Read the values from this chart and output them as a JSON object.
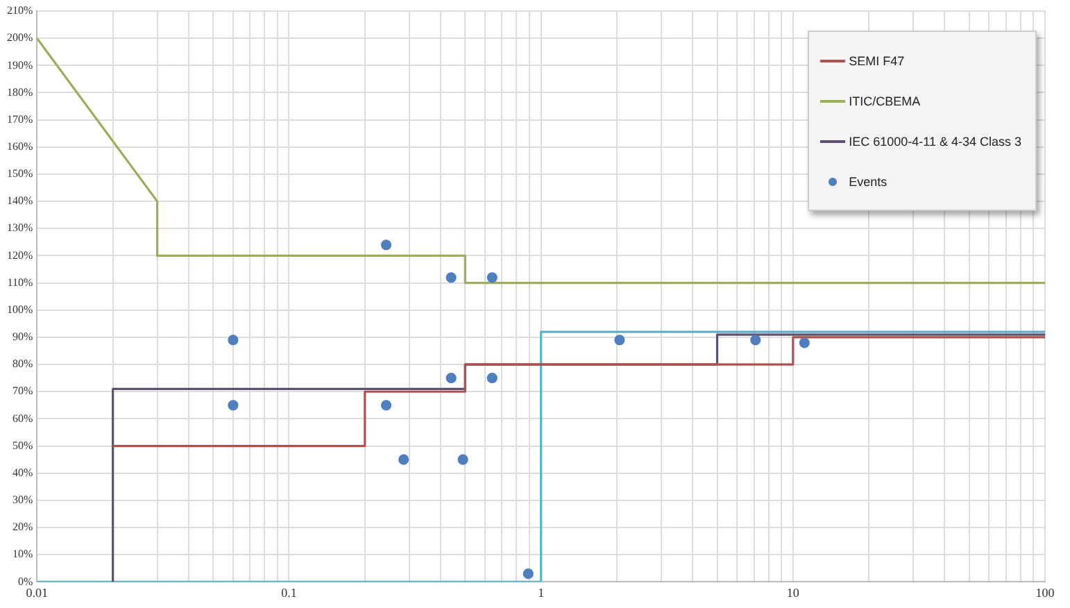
{
  "chart_data": {
    "type": "line",
    "log": "x",
    "grid": true,
    "legend": "top right",
    "marker": "none",
    "line_style": "solid",
    "xlim": [
      0.01,
      100
    ],
    "xticks": [
      0.01,
      {
        "value": 0.02,
        "label": null
      },
      {
        "value": 0.03,
        "label": null
      },
      {
        "value": 0.04,
        "label": null
      },
      {
        "value": 0.05,
        "label": null
      },
      {
        "value": 0.06,
        "label": null
      },
      {
        "value": 0.07,
        "label": null
      },
      {
        "value": 0.08,
        "label": null
      },
      {
        "value": 0.09,
        "label": null
      },
      0.1,
      {
        "value": 0.2,
        "label": null
      },
      {
        "value": 0.3,
        "label": null
      },
      {
        "value": 0.4,
        "label": null
      },
      {
        "value": 0.5,
        "label": null
      },
      {
        "value": 0.6,
        "label": null
      },
      {
        "value": 0.7,
        "label": null
      },
      {
        "value": 0.8,
        "label": null
      },
      {
        "value": 0.9,
        "label": null
      },
      1,
      {
        "value": 2,
        "label": null
      },
      {
        "value": 3,
        "label": null
      },
      {
        "value": 4,
        "label": null
      },
      {
        "value": 5,
        "label": null
      },
      {
        "value": 6,
        "label": null
      },
      {
        "value": 7,
        "label": null
      },
      {
        "value": 8,
        "label": null
      },
      {
        "value": 9,
        "label": null
      },
      10,
      {
        "value": 20,
        "label": null
      },
      {
        "value": 30,
        "label": null
      },
      {
        "value": 40,
        "label": null
      },
      {
        "value": 50,
        "label": null
      },
      {
        "value": 60,
        "label": null
      },
      {
        "value": 70,
        "label": null
      },
      {
        "value": 80,
        "label": null
      },
      {
        "value": 90,
        "label": null
      },
      100
    ],
    "ylim": [
      0,
      210
    ],
    "yticks": [
      {
        "value": 0,
        "label": "0%"
      },
      {
        "value": 10,
        "label": "10%"
      },
      {
        "value": 20,
        "label": "20%"
      },
      {
        "value": 30,
        "label": "30%"
      },
      {
        "value": 40,
        "label": "40%"
      },
      {
        "value": 50,
        "label": "50%"
      },
      {
        "value": 60,
        "label": "60%"
      },
      {
        "value": 70,
        "label": "70%"
      },
      {
        "value": 80,
        "label": "80%"
      },
      {
        "value": 90,
        "label": "90%"
      },
      {
        "value": 100,
        "label": "100%"
      },
      {
        "value": 110,
        "label": "110%"
      },
      {
        "value": 120,
        "label": "120%"
      },
      {
        "value": 130,
        "label": "130%"
      },
      {
        "value": 140,
        "label": "140%"
      },
      {
        "value": 150,
        "label": "150%"
      },
      {
        "value": 160,
        "label": "160%"
      },
      {
        "value": 170,
        "label": "170%"
      },
      {
        "value": 180,
        "label": "180%"
      },
      {
        "value": 190,
        "label": "190%"
      },
      {
        "value": 200,
        "label": "200%"
      },
      {
        "value": 210,
        "label": "210%"
      }
    ],
    "series": [
      {
        "name": "SEMI F47",
        "type": "line",
        "color": "#b0504e",
        "x": [
          0.02,
          0.2,
          0.2,
          0.5,
          0.5,
          10,
          10,
          100
        ],
        "values": [
          50,
          50,
          70,
          70,
          80,
          80,
          90,
          90
        ]
      },
      {
        "name": "ITIC/CBEMA",
        "type": "line",
        "color": "#9bae5a",
        "x": [
          0.01,
          0.03,
          0.03,
          0.5,
          0.5,
          100
        ],
        "values": [
          200,
          140,
          120,
          120,
          110,
          110
        ]
      },
      {
        "name": "IEC 61000-4-11 & 4-34 Class 3",
        "type": "line",
        "color": "#5e5070",
        "x": [
          0.02,
          0.02,
          0.5,
          0.5,
          5,
          5,
          100
        ],
        "values": [
          0,
          71,
          71,
          80,
          80,
          91,
          91
        ]
      },
      {
        "type": "line",
        "color": "#5ab4c8",
        "x": [
          0.01,
          1,
          1,
          100
        ],
        "values": [
          0,
          0,
          92,
          92
        ]
      },
      {
        "name": "Events",
        "type": "scatter",
        "marker": "circle",
        "color": "#4f7fbf",
        "x": [
          0.06,
          0.06,
          0.243,
          0.243,
          0.285,
          0.44,
          0.44,
          0.49,
          0.64,
          0.64,
          0.89,
          2.05,
          7.1,
          11.1
        ],
        "values": [
          89,
          65,
          124,
          65,
          45,
          112,
          75,
          45,
          112,
          75,
          3,
          89,
          89,
          88
        ]
      }
    ]
  }
}
